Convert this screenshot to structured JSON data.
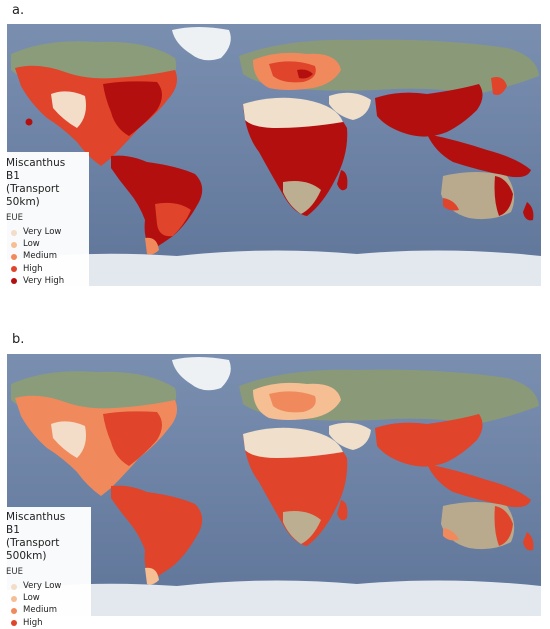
{
  "colors": {
    "very_low": "#f3dcc8",
    "low": "#f6be93",
    "medium": "#f08a5d",
    "high": "#e0442a",
    "very_high": "#b40f0f",
    "ocean": "#6d84a7",
    "ice": "#e8ecf1",
    "land": "#8a9c76"
  },
  "panels": [
    {
      "letter": "a.",
      "legend": {
        "crop": "Miscanthus",
        "scenario": "B1",
        "transport": "(Transport 50km)",
        "eue_label": "EUE",
        "items": [
          {
            "label": "Very Low",
            "color": "#f3dcc8"
          },
          {
            "label": "Low",
            "color": "#f6be93"
          },
          {
            "label": "Medium",
            "color": "#f08a5d"
          },
          {
            "label": "High",
            "color": "#e0442a"
          },
          {
            "label": "Very High",
            "color": "#b40f0f"
          }
        ]
      }
    },
    {
      "letter": "b.",
      "legend": {
        "crop": "Miscanthus",
        "scenario": "B1",
        "transport": "(Transport 500km)",
        "eue_label": "EUE",
        "items": [
          {
            "label": "Very Low",
            "color": "#f3dcc8"
          },
          {
            "label": "Low",
            "color": "#f6be93"
          },
          {
            "label": "Medium",
            "color": "#f08a5d"
          },
          {
            "label": "High",
            "color": "#e0442a"
          }
        ]
      }
    }
  ]
}
